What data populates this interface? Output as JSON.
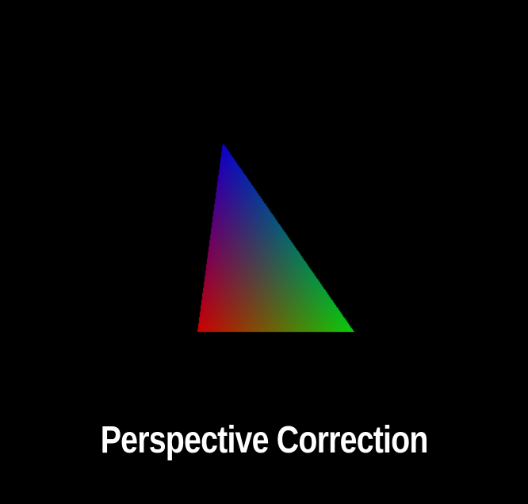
{
  "scene": {
    "background": "#000000",
    "caption": "Perspective Correction",
    "caption_color": "#ffffff",
    "triangle": {
      "shape": "triangle",
      "vertex_colors": {
        "top": "#0a00cc",
        "bottom_left": "#cc0000",
        "bottom_right": "#0acc0a"
      }
    }
  }
}
